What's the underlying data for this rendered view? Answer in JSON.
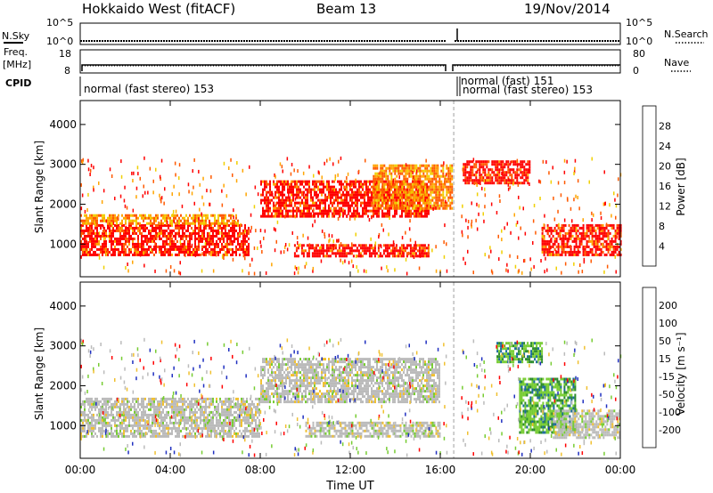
{
  "header": {
    "station": "Hokkaido West (fitACF)",
    "beam": "Beam 13",
    "date": "19/Nov/2014"
  },
  "strip_labels": {
    "nsky": "N.Sky",
    "nsky_ticks": [
      "10^5",
      "10^0"
    ],
    "nsearch": "N.Search",
    "nsearch_ticks": [
      "10^5",
      "10^0"
    ],
    "freq_line1": "Freq.",
    "freq_line2": "[MHz]",
    "freq_ticks": [
      "18",
      "8"
    ],
    "nave": "Nave",
    "nave_ticks": [
      "80",
      "0"
    ],
    "cpid": "CPID"
  },
  "cpid_labels": [
    "normal (fast stereo) 153",
    "normal (fast) 151",
    "normal (fast stereo) 153"
  ],
  "colors": {
    "power_scale": [
      "#0000ff",
      "#2d4f9e",
      "#3a8a3a",
      "#6bbd6b",
      "#f0d000",
      "#ffa500",
      "#ff5a00",
      "#ff0000"
    ],
    "velocity_scale": [
      "#ff0000",
      "#ff5a00",
      "#ff9a00",
      "#f0c030",
      "#bbbbbb",
      "#bbbbbb",
      "#77cc33",
      "#2a8a2a",
      "#1a6a9a",
      "#2030c0"
    ]
  },
  "chart_data": [
    {
      "type": "heatmap",
      "name": "power",
      "xlabel": "",
      "ylabel": "Slant Range [km]",
      "x_ticks": [
        "00:00",
        "04:00",
        "08:00",
        "12:00",
        "16:00",
        "20:00",
        "00:00"
      ],
      "y_ticks": [
        "1000",
        "2000",
        "3000",
        "4000"
      ],
      "ylim": [
        180,
        4600
      ],
      "colorbar": {
        "label": "Power [dB]",
        "ticks": [
          "28",
          "24",
          "20",
          "16",
          "12",
          "8",
          "4"
        ]
      },
      "bands": [
        {
          "t0": 0.0,
          "t1": 7.5,
          "r0": 700,
          "r1": 1500,
          "level": "high"
        },
        {
          "t0": 0.0,
          "t1": 7.0,
          "r0": 1500,
          "r1": 1750,
          "level": "mid"
        },
        {
          "t0": 8.0,
          "t1": 15.5,
          "r0": 1700,
          "r1": 2600,
          "level": "high"
        },
        {
          "t0": 9.5,
          "t1": 15.5,
          "r0": 700,
          "r1": 1000,
          "level": "high"
        },
        {
          "t0": 13.0,
          "t1": 16.5,
          "r0": 1900,
          "r1": 3000,
          "level": "mid"
        },
        {
          "t0": 17.0,
          "t1": 20.0,
          "r0": 2500,
          "r1": 3100,
          "level": "high"
        },
        {
          "t0": 20.5,
          "t1": 24.0,
          "r0": 700,
          "r1": 1500,
          "level": "high"
        }
      ],
      "gap_hours": [
        16.3,
        16.9
      ]
    },
    {
      "type": "heatmap",
      "name": "velocity",
      "xlabel": "Time UT",
      "ylabel": "Slant Range [km]",
      "x_ticks": [
        "00:00",
        "04:00",
        "08:00",
        "12:00",
        "16:00",
        "20:00",
        "00:00"
      ],
      "y_ticks": [
        "1000",
        "2000",
        "3000",
        "4000"
      ],
      "ylim": [
        180,
        4600
      ],
      "colorbar": {
        "label": "Velocity [m s⁻¹]",
        "ticks": [
          "200",
          "100",
          "50",
          "15",
          "-15",
          "-50",
          "-100",
          "-200"
        ]
      },
      "bands": [
        {
          "t0": 0.0,
          "t1": 8.0,
          "r0": 700,
          "r1": 1700,
          "level": "zero"
        },
        {
          "t0": 8.0,
          "t1": 16.0,
          "r0": 1600,
          "r1": 2700,
          "level": "zero"
        },
        {
          "t0": 10.0,
          "t1": 16.0,
          "r0": 700,
          "r1": 1100,
          "level": "zero"
        },
        {
          "t0": 18.5,
          "t1": 20.5,
          "r0": 2600,
          "r1": 3100,
          "level": "positive"
        },
        {
          "t0": 19.5,
          "t1": 22.0,
          "r0": 800,
          "r1": 2200,
          "level": "positive"
        },
        {
          "t0": 21.0,
          "t1": 24.0,
          "r0": 700,
          "r1": 1400,
          "level": "zero"
        }
      ],
      "gap_hours": [
        16.3,
        16.9
      ]
    }
  ]
}
